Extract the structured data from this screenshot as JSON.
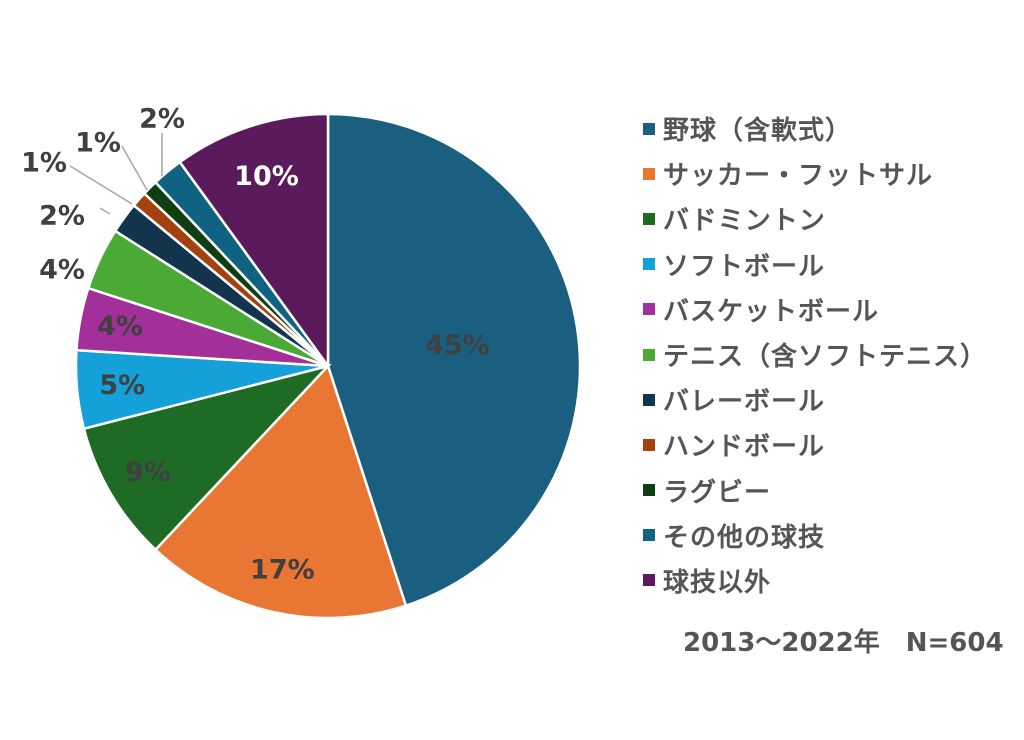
{
  "chart_data": {
    "type": "pie",
    "start_angle_deg": 0,
    "direction": "clockwise",
    "slices": [
      {
        "label": "野球（含軟式）",
        "value": 45,
        "value_label": "45%",
        "color": "#1a5f80",
        "label_color": "#404040"
      },
      {
        "label": "サッカー・フットサル",
        "value": 17,
        "value_label": "17%",
        "color": "#e97632",
        "label_color": "#404040"
      },
      {
        "label": "バドミントン",
        "value": 9,
        "value_label": "9%",
        "color": "#1e6b25",
        "label_color": "#404040"
      },
      {
        "label": "ソフトボール",
        "value": 5,
        "value_label": "5%",
        "color": "#14a0d8",
        "label_color": "#404040"
      },
      {
        "label": "バスケットボール",
        "value": 4,
        "value_label": "4%",
        "color": "#a22f9a",
        "label_color": "#404040"
      },
      {
        "label": "テニス（含ソフトテニス）",
        "value": 4,
        "value_label": "4%",
        "color": "#4aaa35",
        "label_color": "#404040"
      },
      {
        "label": "バレーボール",
        "value": 2,
        "value_label": "2%",
        "color": "#12344d",
        "label_color": "#404040"
      },
      {
        "label": "ハンドボール",
        "value": 1,
        "value_label": "1%",
        "color": "#a4410f",
        "label_color": "#404040"
      },
      {
        "label": "ラグビー",
        "value": 1,
        "value_label": "1%",
        "color": "#0f3e13",
        "label_color": "#404040"
      },
      {
        "label": "その他の球技",
        "value": 2,
        "value_label": "2%",
        "color": "#106282",
        "label_color": "#404040"
      },
      {
        "label": "球技以外",
        "value": 10,
        "value_label": "10%",
        "color": "#5b1a5c",
        "label_color": "#ffffff"
      }
    ],
    "legend_position": "right"
  },
  "footnote": "2013〜2022年　N=604"
}
